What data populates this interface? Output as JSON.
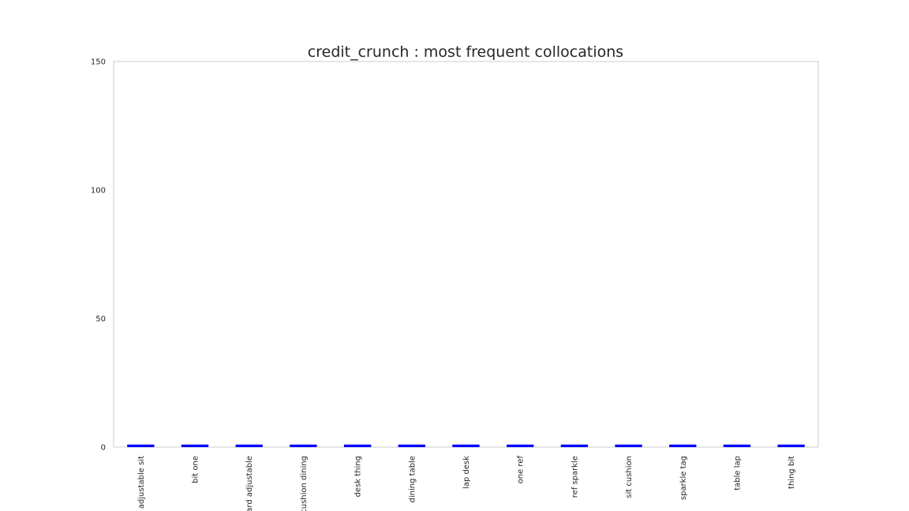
{
  "chart_data": {
    "type": "bar",
    "title": "credit_crunch : most frequent collocations",
    "xlabel": "",
    "ylabel": "",
    "categories": [
      "adjustable sit",
      "bit one",
      "board adjustable",
      "cushion dining",
      "desk thing",
      "dining table",
      "lap desk",
      "one ref",
      "ref sparkle",
      "sit cushion",
      "sparkle tag",
      "table lap",
      "thing bit"
    ],
    "values": [
      1,
      1,
      1,
      1,
      1,
      1,
      1,
      1,
      1,
      1,
      1,
      1,
      1
    ],
    "ylim": [
      0,
      150
    ],
    "yticks": [
      0,
      50,
      100,
      150
    ],
    "grid": false,
    "legend": "none",
    "bar_color": "#0000ff",
    "frame_color": "#cccccc"
  }
}
